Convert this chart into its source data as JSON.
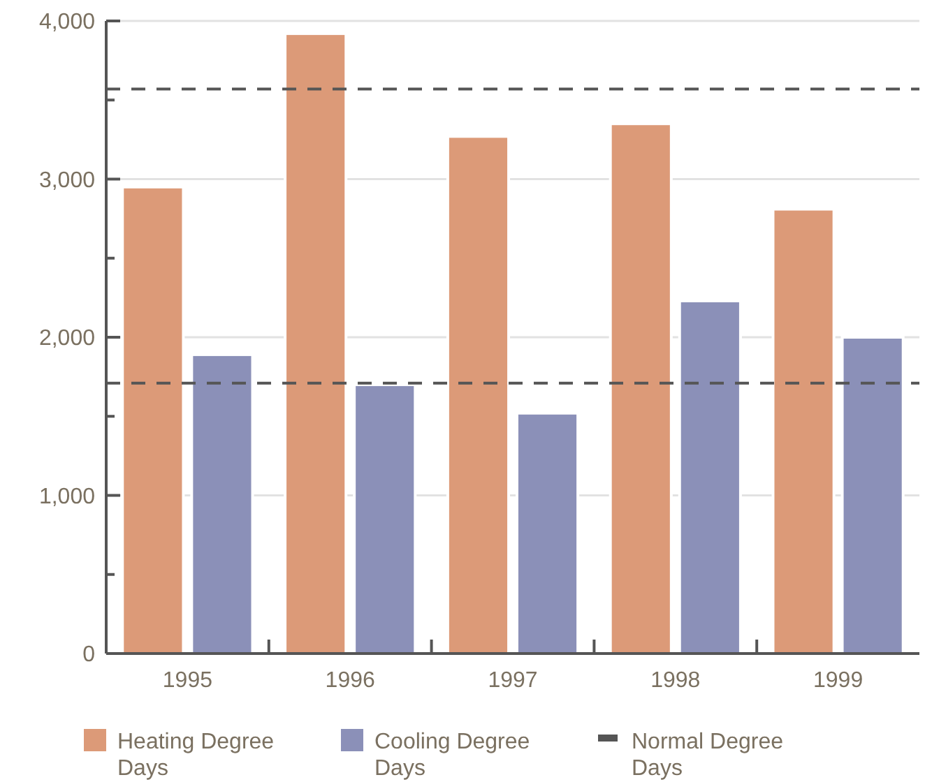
{
  "chart_data": {
    "type": "bar",
    "categories": [
      "1995",
      "1996",
      "1997",
      "1998",
      "1999"
    ],
    "series": [
      {
        "name": "Heating Degree Days",
        "color": "#dc9a78",
        "values": [
          2950,
          3920,
          3270,
          3350,
          2810
        ]
      },
      {
        "name": "Cooling Degree Days",
        "color": "#8b90b8",
        "values": [
          1890,
          1700,
          1520,
          2230,
          2000
        ]
      }
    ],
    "ylim": [
      0,
      4000
    ],
    "yticks": [
      0,
      {
        "value": 500,
        "label": null
      },
      {
        "value": 1000,
        "label": "1,000"
      },
      {
        "value": 1500,
        "label": null
      },
      {
        "value": 2000,
        "label": "2,000"
      },
      {
        "value": 2500,
        "label": null
      },
      {
        "value": 3000,
        "label": "3,000"
      },
      {
        "value": 3500,
        "label": null
      },
      {
        "value": 4000,
        "label": "4,000"
      }
    ],
    "ref_lines": [
      {
        "axis": "y",
        "value": 3570,
        "label": "Normal Degree Days",
        "color": "#555555",
        "line_style": "dashed"
      },
      {
        "axis": "y",
        "value": 1710,
        "color": "#555555",
        "line_style": "dashed"
      }
    ],
    "grid": "y",
    "legend": "bottom"
  }
}
